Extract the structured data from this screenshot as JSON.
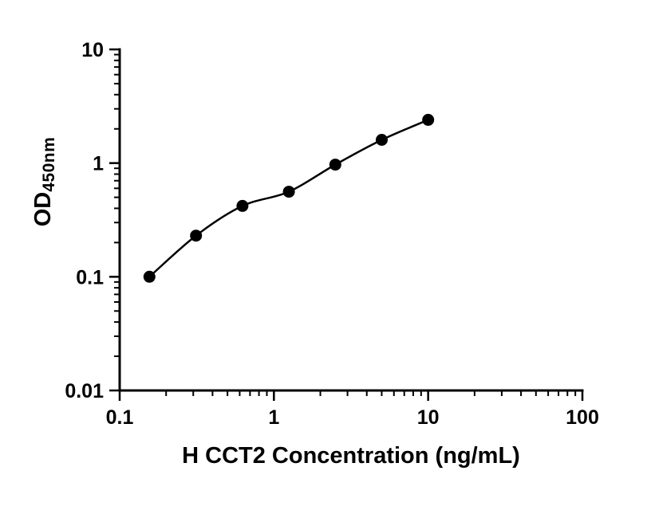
{
  "chart_data": {
    "type": "scatter",
    "title": "",
    "xlabel": "H CCT2 Concentration (ng/mL)",
    "ylabel": "OD450nm",
    "ylabel_main": "OD",
    "ylabel_sub": "450nm",
    "x_scale": "log",
    "y_scale": "log",
    "xlim": [
      0.1,
      100
    ],
    "ylim": [
      0.01,
      10
    ],
    "x": [
      0.156,
      0.3125,
      0.625,
      1.25,
      2.5,
      5,
      10
    ],
    "y": [
      0.1,
      0.23,
      0.42,
      0.56,
      0.97,
      1.6,
      2.4
    ],
    "x_ticks": [
      {
        "value": 0.1,
        "label": "0.1"
      },
      {
        "value": 1,
        "label": "1"
      },
      {
        "value": 10,
        "label": "10"
      },
      {
        "value": 100,
        "label": "100"
      }
    ],
    "y_ticks": [
      {
        "value": 0.01,
        "label": "0.01"
      },
      {
        "value": 0.1,
        "label": "0.1"
      },
      {
        "value": 1,
        "label": "1"
      },
      {
        "value": 10,
        "label": "10"
      }
    ],
    "minor_ticks": true,
    "grid": false,
    "legend": null,
    "marker": "circle",
    "marker_color": "#000000",
    "line_color": "#000000",
    "trend": "smooth"
  }
}
